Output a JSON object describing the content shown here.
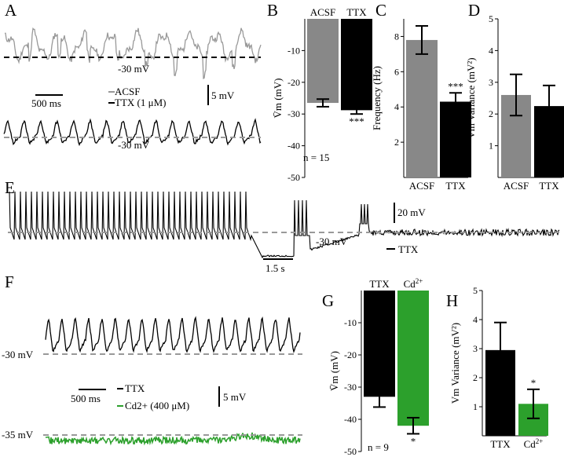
{
  "panels": {
    "A": {
      "label": "A",
      "trace_acsf_level": "-30 mV",
      "trace_ttx_level": "-30 mV",
      "scale_time": "500 ms",
      "scale_volt": "5 mV",
      "legend": [
        "ACSF",
        "TTX (1 μM)"
      ],
      "colors": {
        "acsf": "#999999",
        "ttx": "#000000"
      }
    },
    "B": {
      "label": "B",
      "n_text": "n = 15"
    },
    "C": {
      "label": "C"
    },
    "D": {
      "label": "D"
    },
    "E": {
      "label": "E",
      "scale_volt": "20 mV",
      "scale_time": "1.5 s",
      "level": "-30 mV",
      "drug": "TTX"
    },
    "F": {
      "label": "F",
      "level_ttx": "-30 mV",
      "level_cd": "-35 mV",
      "scale_time": "500 ms",
      "scale_volt": "5 mV",
      "legend": [
        "TTX",
        "Cd2+ (400 μM)"
      ],
      "colors": {
        "ttx": "#000000",
        "cd": "#2ca02c"
      }
    },
    "G": {
      "label": "G",
      "n_text": "n = 9"
    },
    "H": {
      "label": "H"
    }
  },
  "chart_data": [
    {
      "id": "B",
      "type": "bar",
      "categories": [
        "ACSF",
        "TTX"
      ],
      "values": [
        -26.5,
        -28.8
      ],
      "errors": [
        1.2,
        1.2
      ],
      "colors": [
        "#888888",
        "#000000"
      ],
      "ylabel": "V̄m (mV)",
      "ylim": [
        -50,
        0
      ],
      "yticks": [
        -10,
        -20,
        -30,
        -40,
        -50
      ],
      "significance": [
        "",
        "***"
      ]
    },
    {
      "id": "C",
      "type": "bar",
      "categories": [
        "ACSF",
        "TTX"
      ],
      "values": [
        7.8,
        4.3
      ],
      "errors": [
        0.8,
        0.5
      ],
      "colors": [
        "#888888",
        "#000000"
      ],
      "ylabel": "Frequency (Hz)",
      "ylim": [
        0,
        9
      ],
      "yticks": [
        2,
        4,
        6,
        8
      ],
      "significance": [
        "",
        "***"
      ]
    },
    {
      "id": "D",
      "type": "bar",
      "categories": [
        "ACSF",
        "TTX"
      ],
      "values": [
        2.6,
        2.25
      ],
      "errors": [
        0.65,
        0.65
      ],
      "colors": [
        "#888888",
        "#000000"
      ],
      "ylabel": "Vm Variance (mV2)",
      "ylim": [
        0,
        5
      ],
      "yticks": [
        1,
        2,
        3,
        4,
        5
      ],
      "significance": [
        "",
        ""
      ]
    },
    {
      "id": "G",
      "type": "bar",
      "categories": [
        "TTX",
        "Cd2+"
      ],
      "values": [
        -33,
        -42
      ],
      "errors": [
        3.2,
        2.5
      ],
      "colors": [
        "#000000",
        "#2ca02c"
      ],
      "ylabel": "V̄m (mV)",
      "ylim": [
        -50,
        0
      ],
      "yticks": [
        -10,
        -20,
        -30,
        -40,
        -50
      ],
      "significance": [
        "",
        "*"
      ]
    },
    {
      "id": "H",
      "type": "bar",
      "categories": [
        "TTX",
        "Cd2+"
      ],
      "values": [
        2.95,
        1.1
      ],
      "errors": [
        0.95,
        0.5
      ],
      "colors": [
        "#000000",
        "#2ca02c"
      ],
      "ylabel": "Vm Variance (mV2)",
      "ylim": [
        0,
        5
      ],
      "yticks": [
        1,
        2,
        3,
        4,
        5
      ],
      "significance": [
        "",
        "*"
      ]
    }
  ]
}
